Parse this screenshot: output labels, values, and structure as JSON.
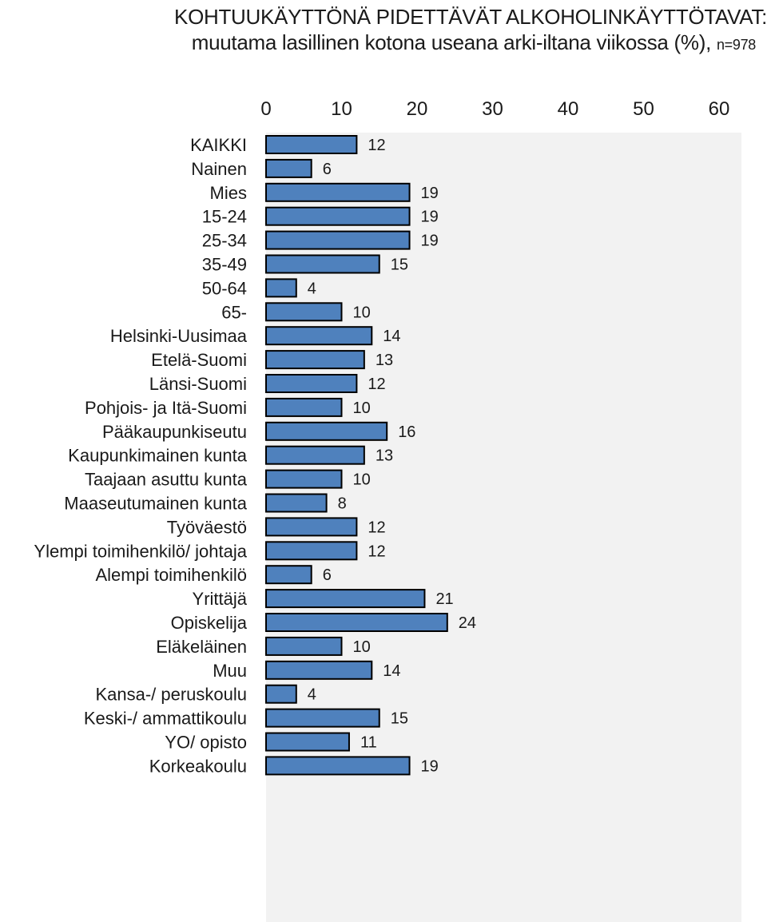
{
  "chart_data": {
    "type": "bar",
    "orientation": "horizontal",
    "title": "KOHTUUKÄYTTÖNÄ PIDETTÄVÄT ALKOHOLINKÄYTTÖTAVAT:",
    "subtitle": "muutama lasillinen kotona useana arki-iltana viikossa",
    "unit": "(%),",
    "n_label": "n=978",
    "xlim": [
      0,
      60
    ],
    "x_ticks": [
      "0",
      "10",
      "20",
      "30",
      "40",
      "50",
      "60"
    ],
    "x_axis_position": "top",
    "grid": false,
    "plot_background": "#f2f2f2",
    "bar_color": "#4f81bd",
    "groups": [
      {
        "categories": [
          "KAIKKI"
        ],
        "values": [
          12
        ]
      },
      {
        "categories": [
          "Nainen",
          "Mies"
        ],
        "values": [
          6,
          19
        ]
      },
      {
        "categories": [
          "15-24",
          "25-34",
          "35-49",
          "50-64",
          "65-"
        ],
        "values": [
          19,
          19,
          15,
          4,
          10
        ]
      },
      {
        "categories": [
          "Helsinki-Uusimaa",
          "Etelä-Suomi",
          "Länsi-Suomi",
          "Pohjois- ja Itä-Suomi"
        ],
        "values": [
          14,
          13,
          12,
          10
        ]
      },
      {
        "categories": [
          "Pääkaupunkiseutu",
          "Kaupunkimainen kunta",
          "Taajaan asuttu kunta",
          "Maaseutumainen kunta"
        ],
        "values": [
          16,
          13,
          10,
          8
        ]
      },
      {
        "categories": [
          "Työväestö",
          "Ylempi toimihenkilö/ johtaja",
          "Alempi toimihenkilö",
          "Yrittäjä",
          "Opiskelija",
          "Eläkeläinen",
          "Muu"
        ],
        "values": [
          12,
          12,
          6,
          21,
          24,
          10,
          14
        ]
      },
      {
        "categories": [
          "Kansa-/ peruskoulu",
          "Keski-/ ammattikoulu",
          "YO/ opisto",
          "Korkeakoulu"
        ],
        "values": [
          4,
          15,
          11,
          19
        ]
      }
    ]
  }
}
